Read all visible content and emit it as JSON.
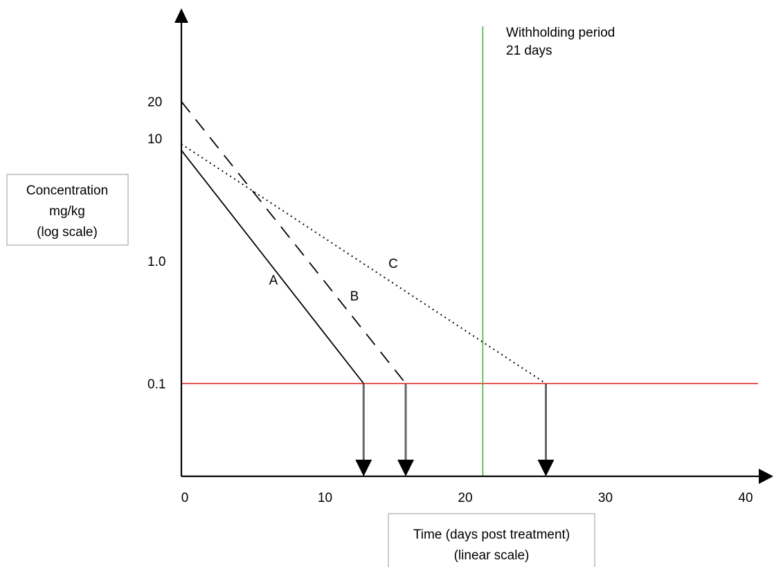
{
  "chart_data": {
    "type": "line",
    "x_axis": {
      "scale": "linear",
      "range": [
        0,
        40
      ],
      "ticks": [
        0,
        10,
        20,
        30,
        40
      ],
      "tick_labels": [
        "0",
        "10",
        "20",
        "30",
        "40"
      ],
      "label_lines": [
        "Time (days post treatment)",
        "(linear scale)"
      ]
    },
    "y_axis": {
      "scale": "log",
      "range": [
        0.01,
        50
      ],
      "ticks": [
        0.1,
        1.0,
        10,
        20
      ],
      "tick_labels": [
        "0.1",
        "1.0",
        "10",
        "20"
      ],
      "label_lines": [
        "Concentration",
        "mg/kg",
        "(log scale)"
      ]
    },
    "grid": false,
    "legend": "none",
    "series": [
      {
        "name": "A",
        "style": "solid",
        "x": [
          0,
          13
        ],
        "y": [
          8,
          0.1
        ]
      },
      {
        "name": "B",
        "style": "dashed",
        "x": [
          0,
          16
        ],
        "y": [
          20,
          0.1
        ]
      },
      {
        "name": "C",
        "style": "dotted",
        "x": [
          0,
          26
        ],
        "y": [
          9,
          0.1
        ]
      }
    ],
    "reference_lines": [
      {
        "orientation": "horizontal",
        "value": 0.1,
        "color": "#e0201c"
      },
      {
        "orientation": "vertical",
        "value": 21.5,
        "color": "#3fae3f",
        "label_lines": [
          "Withholding period",
          "21 days"
        ]
      }
    ],
    "drop_arrows_at_x": [
      13,
      16,
      26
    ],
    "colors": {
      "axis": "#000000",
      "arrow": "#666666",
      "box_border": "#999999"
    }
  }
}
